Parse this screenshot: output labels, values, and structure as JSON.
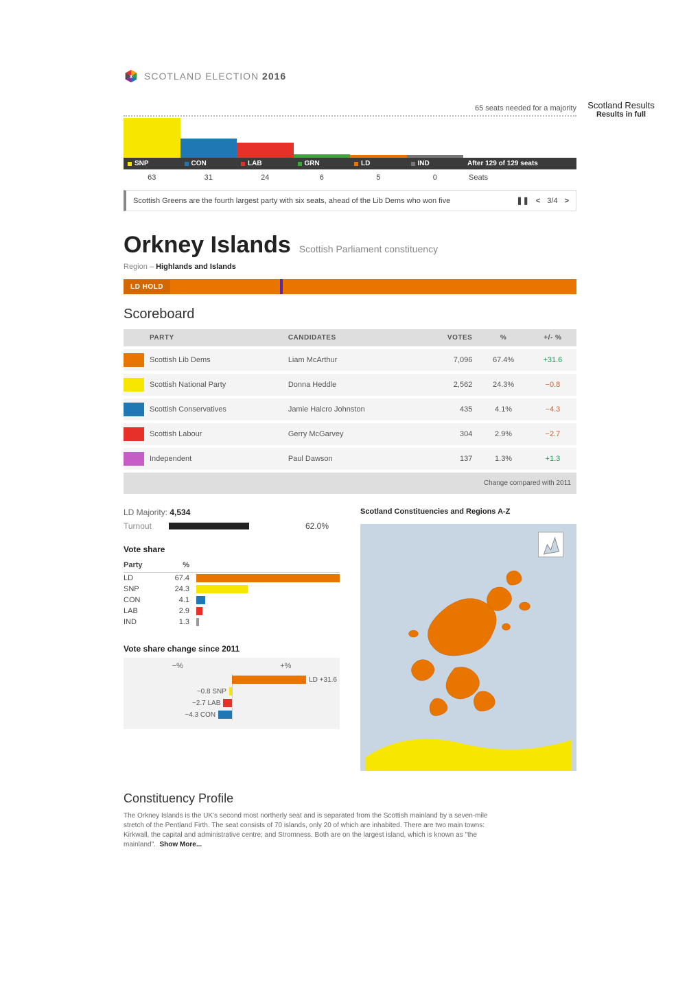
{
  "header": {
    "brand_prefix": "SCOTLAND ELECTION",
    "brand_year": "2016",
    "logo_colors": [
      "#e03131",
      "#f59f00",
      "#2f9e44",
      "#1971c2",
      "#862e9c",
      "#495057"
    ]
  },
  "summary": {
    "majority_text": "65 seats needed for a majority",
    "headline_1": "Scotland Results",
    "headline_2": "Results in full",
    "seats_after_label": "After 129 of 129 seats",
    "seats_label": "Seats",
    "max_seats": 65,
    "parties": [
      {
        "code": "SNP",
        "seats": 63,
        "color": "#f7e600"
      },
      {
        "code": "CON",
        "seats": 31,
        "color": "#1f77b4"
      },
      {
        "code": "LAB",
        "seats": 24,
        "color": "#e8302a"
      },
      {
        "code": "GRN",
        "seats": 6,
        "color": "#3aaa35"
      },
      {
        "code": "LD",
        "seats": 5,
        "color": "#e87500"
      },
      {
        "code": "IND",
        "seats": 0,
        "color": "#777777"
      }
    ],
    "ticker": "Scottish Greens are the fourth largest party with six seats, ahead of the Lib Dems who won five",
    "ticker_page": "3/4"
  },
  "constituency": {
    "title": "Orkney Islands",
    "subtitle": "Scottish Parliament constituency",
    "region_prefix": "Region – ",
    "region": "Highlands and Islands",
    "hold_label": "LD HOLD",
    "hold_color": "#e87500",
    "majority_label": "LD Majority:",
    "majority_value": "4,534",
    "turnout_label": "Turnout",
    "turnout_pct": 62.0,
    "turnout_display": "62.0%"
  },
  "scoreboard": {
    "heading": "Scoreboard",
    "columns": {
      "party": "PARTY",
      "candidates": "CANDIDATES",
      "votes": "VOTES",
      "pct": "%",
      "change": "+/- %"
    },
    "footer": "Change compared with 2011",
    "rows": [
      {
        "color": "#e87500",
        "party": "Scottish Lib Dems",
        "candidate": "Liam McArthur",
        "votes": "7,096",
        "pct": "67.4%",
        "change": "+31.6",
        "dir": "pos"
      },
      {
        "color": "#f7e600",
        "party": "Scottish National Party",
        "candidate": "Donna Heddle",
        "votes": "2,562",
        "pct": "24.3%",
        "change": "−0.8",
        "dir": "neg"
      },
      {
        "color": "#1f77b4",
        "party": "Scottish Conservatives",
        "candidate": "Jamie Halcro Johnston",
        "votes": "435",
        "pct": "4.1%",
        "change": "−4.3",
        "dir": "neg"
      },
      {
        "color": "#e8302a",
        "party": "Scottish Labour",
        "candidate": "Gerry McGarvey",
        "votes": "304",
        "pct": "2.9%",
        "change": "−2.7",
        "dir": "neg"
      },
      {
        "color": "#c65cc6",
        "party": "Independent",
        "candidate": "Paul Dawson",
        "votes": "137",
        "pct": "1.3%",
        "change": "+1.3",
        "dir": "pos"
      }
    ]
  },
  "vote_share": {
    "heading": "Vote share",
    "col_party": "Party",
    "col_pct": "%",
    "max": 67.4,
    "rows": [
      {
        "code": "LD",
        "pct": 67.4,
        "color": "#e87500"
      },
      {
        "code": "SNP",
        "pct": 24.3,
        "color": "#f7e600"
      },
      {
        "code": "CON",
        "pct": 4.1,
        "color": "#1f77b4"
      },
      {
        "code": "LAB",
        "pct": 2.9,
        "color": "#e8302a"
      },
      {
        "code": "IND",
        "pct": 1.3,
        "color": "#999999"
      }
    ]
  },
  "change_chart": {
    "heading": "Vote share change since 2011",
    "neg_label": "−%",
    "pos_label": "+%",
    "scale": 35,
    "rows": [
      {
        "code": "LD",
        "val": 31.6,
        "color": "#e87500",
        "label": "LD +31.6"
      },
      {
        "code": "SNP",
        "val": -0.8,
        "color": "#f7e600",
        "label": "−0.8 SNP"
      },
      {
        "code": "LAB",
        "val": -2.7,
        "color": "#e8302a",
        "label": "−2.7 LAB"
      },
      {
        "code": "CON",
        "val": -4.3,
        "color": "#1f77b4",
        "label": "−4.3 CON"
      }
    ]
  },
  "az": {
    "title": "Scotland Constituencies and Regions A-Z"
  },
  "map": {
    "bg": "#c8d6e4",
    "fill": "#e87500",
    "mainland_color": "#f7e600"
  },
  "profile": {
    "heading": "Constituency Profile",
    "body": "The Orkney Islands is the UK's second most northerly seat and is separated from the Scottish mainland by a seven-mile stretch of the Pentland Firth. The seat consists of 70 islands, only 20 of which are inhabited. There are two main towns: Kirkwall, the capital and administrative centre; and Stromness. Both are on the largest island, which is known as \"the mainland\".",
    "show_more": "Show More..."
  }
}
